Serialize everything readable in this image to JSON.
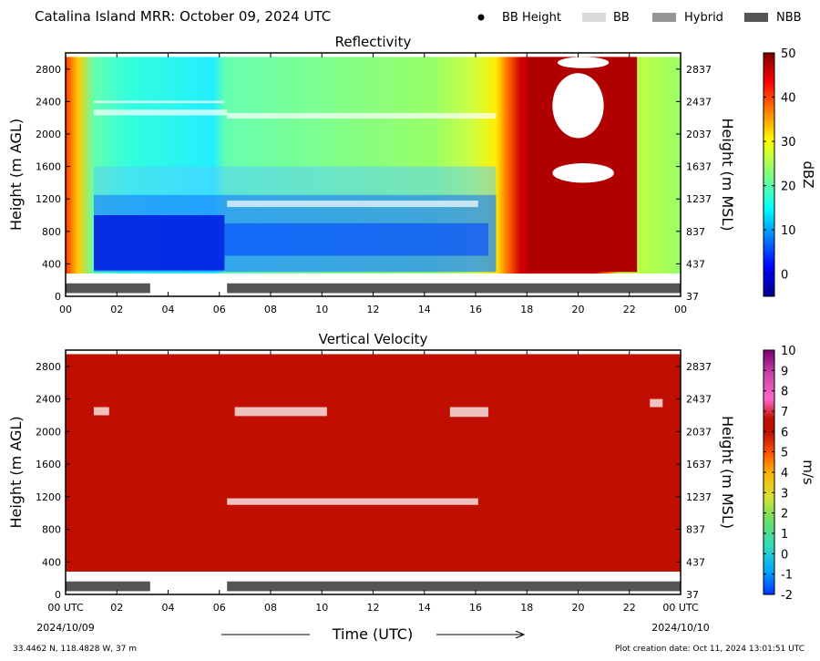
{
  "header": {
    "title": "Catalina Island MRR:  October 09, 2024 UTC"
  },
  "legend": [
    {
      "label": "BB Height",
      "symbol": "dot",
      "color": "#000000"
    },
    {
      "label": "BB",
      "symbol": "box",
      "color": "#d9d9d9"
    },
    {
      "label": "Hybrid",
      "symbol": "box",
      "color": "#969696"
    },
    {
      "label": "NBB",
      "symbol": "box",
      "color": "#555555"
    }
  ],
  "colors": {
    "rain_type_nbb": "#555555",
    "velocity_field": "#c00f00"
  },
  "footer": {
    "location": "33.4462 N, 118.4828 W, 37 m",
    "creation_date": "Plot creation date: Oct 11, 2024 13:01:51 UTC",
    "start_date": "2024/10/09",
    "end_date": "2024/10/10"
  },
  "chart_data": [
    {
      "type": "heatmap",
      "title": "Reflectivity",
      "ylabel": "Height (m AGL)",
      "ylabel_right": "Height (m MSL)",
      "xlabel": "Time (UTC)",
      "colorbar_label": "dBZ",
      "x_ticks": [
        "00",
        "02",
        "04",
        "06",
        "08",
        "10",
        "12",
        "14",
        "16",
        "18",
        "20",
        "22",
        "00"
      ],
      "xlim_hours": [
        0,
        24
      ],
      "y_ticks_left": [
        "0",
        "400",
        "800",
        "1200",
        "1600",
        "2000",
        "2400",
        "2800"
      ],
      "y_ticks_right": [
        "37",
        "437",
        "837",
        "1237",
        "1637",
        "2037",
        "2437",
        "2837"
      ],
      "ylim": [
        0,
        3000
      ],
      "colorbar_ticks": [
        "0",
        "10",
        "20",
        "30",
        "40",
        "50"
      ],
      "colorbar_range": [
        -5,
        50
      ],
      "rain_type_nbb_periods_hours": [
        [
          0,
          3.3
        ],
        [
          6.3,
          24
        ]
      ]
    },
    {
      "type": "heatmap",
      "title": "Vertical Velocity",
      "ylabel": "Height (m AGL)",
      "ylabel_right": "Height (m MSL)",
      "xlabel": "Time (UTC)",
      "colorbar_label": "m/s",
      "x_ticks": [
        "00 UTC",
        "02",
        "04",
        "06",
        "08",
        "10",
        "12",
        "14",
        "16",
        "18",
        "20",
        "22",
        "00 UTC"
      ],
      "xlim_hours": [
        0,
        24
      ],
      "y_ticks_left": [
        "0",
        "400",
        "800",
        "1200",
        "1600",
        "2000",
        "2400",
        "2800"
      ],
      "y_ticks_right": [
        "37",
        "437",
        "837",
        "1237",
        "1637",
        "2037",
        "2437",
        "2837"
      ],
      "ylim": [
        0,
        3000
      ],
      "colorbar_ticks": [
        "-2",
        "-1",
        "0",
        "1",
        "2",
        "3",
        "4",
        "5",
        "6",
        "7",
        "8",
        "9",
        "10"
      ],
      "colorbar_range": [
        -2,
        10
      ],
      "rain_type_nbb_periods_hours": [
        [
          0,
          3.3
        ],
        [
          6.3,
          24
        ]
      ]
    }
  ]
}
